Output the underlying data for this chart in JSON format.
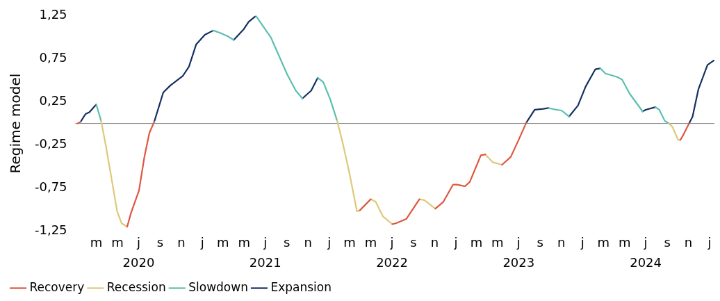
{
  "chart_data": {
    "type": "line",
    "ylabel": "Regime model",
    "legend": "bottom left",
    "marker": "none",
    "line_style": "solid",
    "grid": false,
    "x": [
      "2020-01-07",
      "2020-01-16",
      "2020-01-30",
      "2020-02-10",
      "2020-03-01",
      "2020-03-15",
      "2020-03-29",
      "2020-04-14",
      "2020-04-30",
      "2020-05-13",
      "2020-05-29",
      "2020-06-09",
      "2020-07-02",
      "2020-07-18",
      "2020-08-01",
      "2020-08-15",
      "2020-09-10",
      "2020-09-30",
      "2020-11-05",
      "2020-11-23",
      "2020-12-14",
      "2021-01-08",
      "2021-02-01",
      "2021-02-22",
      "2021-03-16",
      "2021-04-01",
      "2021-04-29",
      "2021-05-14",
      "2021-06-04",
      "2021-07-17",
      "2021-09-02",
      "2021-09-27",
      "2021-10-16",
      "2021-10-24",
      "2021-11-10",
      "2021-11-29",
      "2021-12-15",
      "2022-01-04",
      "2022-01-24",
      "2022-02-08",
      "2022-02-27",
      "2022-03-22",
      "2022-03-30",
      "2022-05-01",
      "2022-05-15",
      "2022-06-05",
      "2022-07-02",
      "2022-07-12",
      "2022-08-11",
      "2022-09-18",
      "2022-10-02",
      "2022-11-03",
      "2022-11-26",
      "2022-12-24",
      "2023-01-04",
      "2023-01-27",
      "2023-02-10",
      "2023-03-14",
      "2023-03-27",
      "2023-04-17",
      "2023-05-14",
      "2023-06-08",
      "2023-07-01",
      "2023-07-23",
      "2023-08-16",
      "2023-09-09",
      "2023-09-25",
      "2023-10-16",
      "2023-11-02",
      "2023-11-23",
      "2023-12-19",
      "2024-01-10",
      "2024-02-07",
      "2024-02-21",
      "2024-03-07",
      "2024-04-10",
      "2024-04-24",
      "2024-05-15",
      "2024-06-22",
      "2024-07-02",
      "2024-07-29",
      "2024-08-09",
      "2024-08-25",
      "2024-09-06",
      "2024-09-16",
      "2024-10-02",
      "2024-10-09",
      "2024-10-15",
      "2024-11-03",
      "2024-11-13",
      "2024-11-30",
      "2024-12-26",
      "2025-01-13"
    ],
    "series": [
      {
        "name": "Recovery",
        "color": "#e0553f",
        "values": [
          0.0,
          0.02,
          null,
          null,
          null,
          null,
          null,
          null,
          null,
          null,
          -1.2,
          -1.04,
          -0.78,
          -0.38,
          -0.11,
          0.02,
          null,
          null,
          null,
          null,
          null,
          null,
          null,
          null,
          null,
          null,
          null,
          null,
          null,
          null,
          null,
          null,
          null,
          null,
          null,
          null,
          null,
          null,
          null,
          null,
          null,
          null,
          -1.01,
          -0.88,
          null,
          null,
          -1.17,
          -1.16,
          -1.11,
          -0.88,
          null,
          -0.99,
          -0.91,
          -0.71,
          -0.71,
          -0.73,
          -0.68,
          -0.37,
          -0.36,
          null,
          -0.48,
          -0.39,
          -0.19,
          0.01,
          null,
          null,
          null,
          null,
          null,
          null,
          null,
          null,
          null,
          null,
          null,
          null,
          null,
          null,
          null,
          null,
          null,
          null,
          null,
          null,
          null,
          null,
          -0.19,
          -0.15,
          0.0,
          null,
          null,
          null,
          null
        ]
      },
      {
        "name": "Recession",
        "color": "#dcc97a",
        "values": [
          null,
          null,
          null,
          null,
          null,
          0.03,
          -0.27,
          -0.64,
          -1.02,
          -1.16,
          -1.2,
          null,
          null,
          null,
          null,
          null,
          null,
          null,
          null,
          null,
          null,
          null,
          null,
          null,
          null,
          null,
          null,
          null,
          null,
          null,
          null,
          null,
          null,
          null,
          null,
          null,
          null,
          null,
          0.03,
          -0.21,
          -0.55,
          -1.02,
          -1.01,
          -0.88,
          -0.91,
          -1.08,
          -1.17,
          null,
          null,
          -0.88,
          -0.89,
          -0.99,
          null,
          null,
          -0.71,
          -0.73,
          null,
          null,
          -0.36,
          -0.45,
          -0.48,
          null,
          null,
          null,
          null,
          null,
          null,
          null,
          null,
          null,
          null,
          null,
          null,
          null,
          null,
          null,
          null,
          null,
          null,
          null,
          null,
          null,
          null,
          0.0,
          -0.04,
          -0.19,
          -0.19,
          null,
          null,
          null,
          null,
          null,
          null
        ]
      },
      {
        "name": "Slowdown",
        "color": "#5bbfb0",
        "values": [
          null,
          null,
          null,
          null,
          0.22,
          0.03,
          null,
          null,
          null,
          null,
          null,
          null,
          null,
          null,
          null,
          null,
          null,
          null,
          null,
          null,
          null,
          null,
          1.08,
          1.05,
          1.01,
          0.97,
          null,
          null,
          1.25,
          1.0,
          0.57,
          0.38,
          0.29,
          null,
          null,
          0.53,
          0.48,
          0.28,
          0.03,
          null,
          null,
          null,
          null,
          null,
          null,
          null,
          null,
          null,
          null,
          null,
          null,
          null,
          null,
          null,
          null,
          null,
          null,
          null,
          null,
          null,
          null,
          null,
          null,
          null,
          null,
          null,
          0.18,
          0.16,
          0.15,
          0.08,
          null,
          null,
          null,
          0.64,
          0.58,
          0.54,
          0.51,
          0.35,
          0.14,
          null,
          0.19,
          0.16,
          0.03,
          0.0,
          null,
          null,
          null,
          null,
          null,
          null,
          null,
          null,
          null
        ]
      },
      {
        "name": "Expansion",
        "color": "#13305f",
        "values": [
          null,
          0.02,
          0.11,
          0.13,
          0.22,
          null,
          null,
          null,
          null,
          null,
          null,
          null,
          null,
          null,
          null,
          0.02,
          0.36,
          0.44,
          0.55,
          0.66,
          0.92,
          1.03,
          1.08,
          null,
          null,
          0.97,
          1.09,
          1.18,
          1.25,
          null,
          null,
          null,
          0.29,
          0.32,
          0.38,
          0.53,
          null,
          null,
          null,
          null,
          null,
          null,
          null,
          null,
          null,
          null,
          null,
          null,
          null,
          null,
          null,
          null,
          null,
          null,
          null,
          null,
          null,
          null,
          null,
          null,
          null,
          null,
          null,
          0.01,
          0.16,
          0.17,
          0.18,
          null,
          null,
          0.08,
          0.21,
          0.43,
          0.63,
          0.64,
          null,
          null,
          null,
          null,
          0.14,
          0.16,
          0.19,
          null,
          null,
          null,
          null,
          null,
          null,
          null,
          0.0,
          0.08,
          0.4,
          0.68,
          0.73
        ]
      }
    ],
    "ylim": [
      -1.25,
      1.25
    ],
    "yticks": [
      {
        "value": -1.25,
        "label": "-1,25"
      },
      {
        "value": -0.75,
        "label": "-0,75"
      },
      {
        "value": -0.25,
        "label": "-0,25"
      },
      {
        "value": 0.25,
        "label": "0,25"
      },
      {
        "value": 0.75,
        "label": "0,75"
      },
      {
        "value": 1.25,
        "label": "1,25"
      }
    ],
    "xlim": [
      "2020-01-01",
      "2025-01-15"
    ],
    "xticks": [
      {
        "value": "2020-03-01",
        "label": "m"
      },
      {
        "value": "2020-05-01",
        "label": "m"
      },
      {
        "value": "2020-07-01",
        "label": "j\n2020"
      },
      {
        "value": "2020-09-01",
        "label": "s"
      },
      {
        "value": "2020-11-01",
        "label": "n"
      },
      {
        "value": "2021-01-01",
        "label": "j"
      },
      {
        "value": "2021-03-01",
        "label": "m"
      },
      {
        "value": "2021-05-01",
        "label": "m"
      },
      {
        "value": "2021-07-01",
        "label": "j\n2021"
      },
      {
        "value": "2021-09-01",
        "label": "s"
      },
      {
        "value": "2021-11-01",
        "label": "n"
      },
      {
        "value": "2022-01-01",
        "label": "j"
      },
      {
        "value": "2022-03-01",
        "label": "m"
      },
      {
        "value": "2022-05-01",
        "label": "m"
      },
      {
        "value": "2022-07-01",
        "label": "j\n2022"
      },
      {
        "value": "2022-09-01",
        "label": "s"
      },
      {
        "value": "2022-11-01",
        "label": "n"
      },
      {
        "value": "2023-01-01",
        "label": "j"
      },
      {
        "value": "2023-03-01",
        "label": "m"
      },
      {
        "value": "2023-05-01",
        "label": "m"
      },
      {
        "value": "2023-07-01",
        "label": "j\n2023"
      },
      {
        "value": "2023-09-01",
        "label": "s"
      },
      {
        "value": "2023-11-01",
        "label": "n"
      },
      {
        "value": "2024-01-01",
        "label": "j"
      },
      {
        "value": "2024-03-01",
        "label": "m"
      },
      {
        "value": "2024-05-01",
        "label": "m"
      },
      {
        "value": "2024-07-01",
        "label": "j\n2024"
      },
      {
        "value": "2024-09-01",
        "label": "s"
      },
      {
        "value": "2024-11-01",
        "label": "n"
      },
      {
        "value": "2025-01-01",
        "label": "j"
      }
    ],
    "ref_lines": [
      {
        "axis": "y",
        "value": 0,
        "color": "#808080"
      }
    ]
  }
}
